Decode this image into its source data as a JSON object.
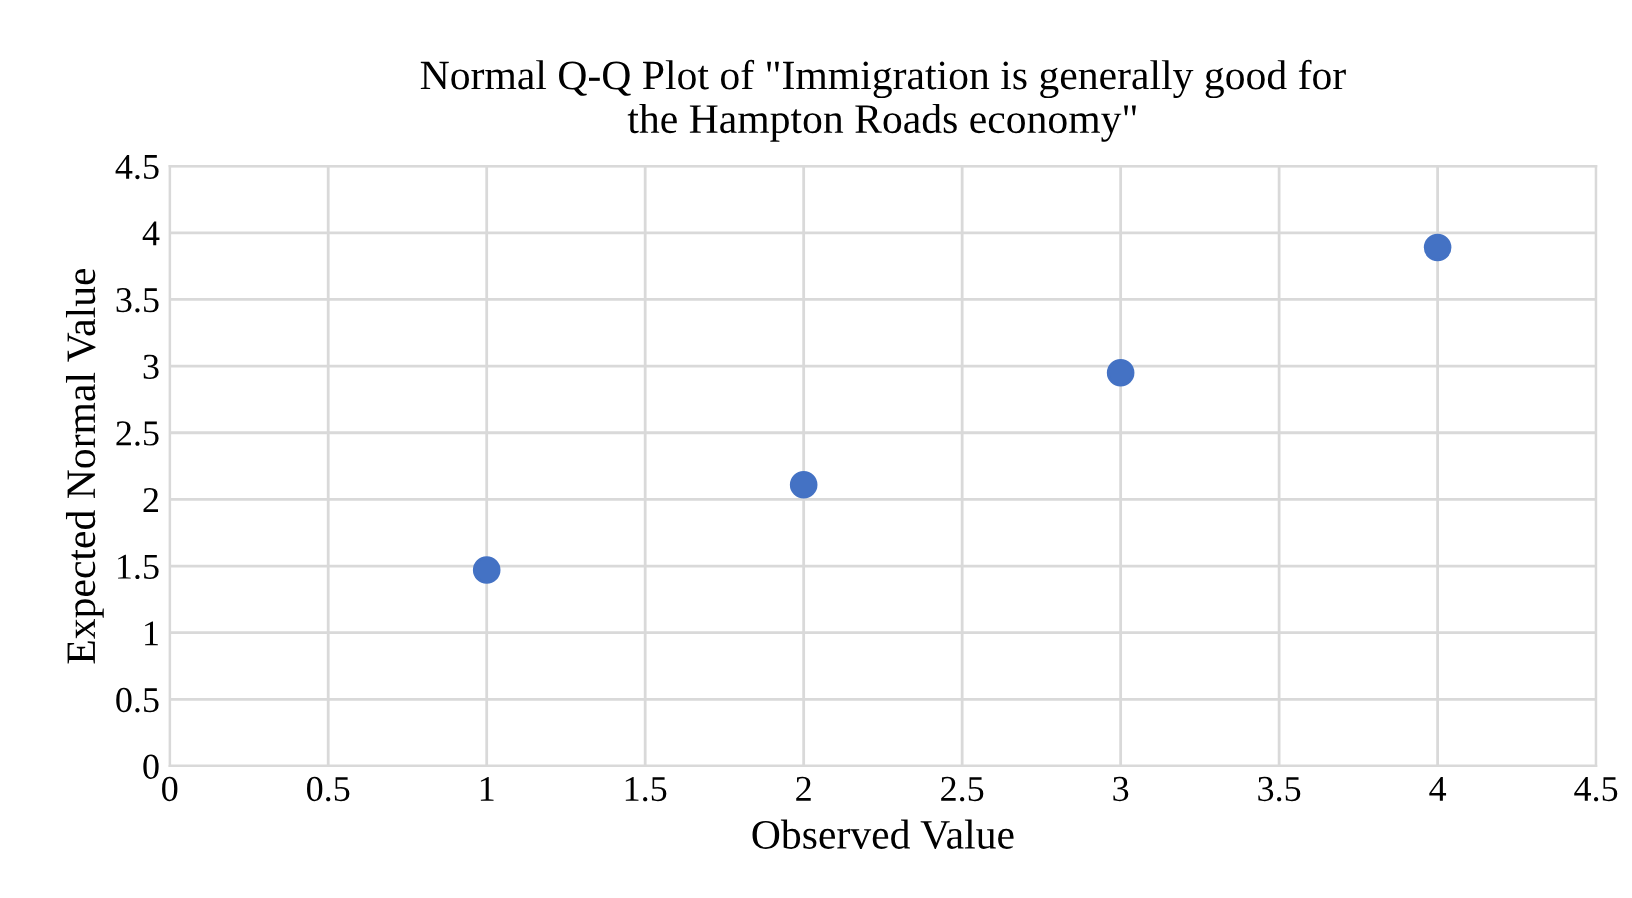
{
  "chart_data": {
    "type": "scatter",
    "title": "Normal Q-Q Plot of \"Immigration is generally good for\nthe Hampton Roads economy\"",
    "xlabel": "Observed Value",
    "ylabel": "Expected Normal Value",
    "x": [
      1,
      2,
      3,
      4
    ],
    "series": [
      {
        "color": "#4472c4",
        "values": [
          1.47,
          2.11,
          2.95,
          3.89
        ]
      }
    ],
    "xlim": [
      0,
      4.5
    ],
    "ylim": [
      0,
      4.5
    ],
    "xticks": [
      0,
      0.5,
      1,
      1.5,
      2,
      2.5,
      3,
      3.5,
      4,
      4.5
    ],
    "yticks": [
      0,
      0.5,
      1,
      1.5,
      2,
      2.5,
      3,
      3.5,
      4,
      4.5
    ],
    "grid": true,
    "marker": "circle"
  }
}
